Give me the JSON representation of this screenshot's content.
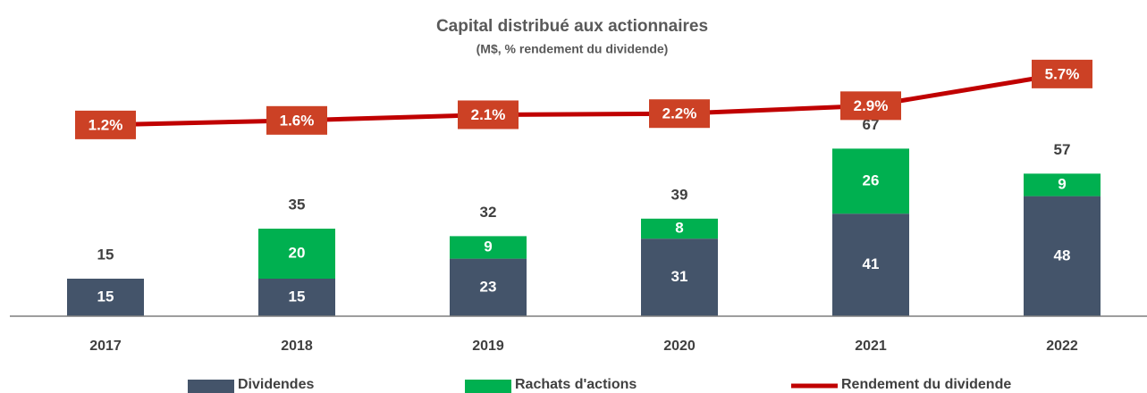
{
  "chart_data": {
    "type": "bar",
    "title": "Capital distribué aux actionnaires",
    "subtitle": "(M$, % rendement du dividende)",
    "categories": [
      "2017",
      "2018",
      "2019",
      "2020",
      "2021",
      "2022"
    ],
    "series": [
      {
        "name": "Dividendes",
        "color": "#44546a",
        "values": [
          15,
          15,
          23,
          31,
          41,
          48
        ]
      },
      {
        "name": "Rachats d'actions",
        "color": "#00b050",
        "values": [
          null,
          20,
          9,
          8,
          26,
          9
        ]
      },
      {
        "name": "Rendement du dividende",
        "color": "#c00000",
        "type": "line",
        "axis": "y2",
        "values": [
          1.2,
          1.6,
          2.1,
          2.2,
          2.9,
          5.7
        ],
        "value_labels": [
          "1.2%",
          "1.6%",
          "2.1%",
          "2.2%",
          "2.9%",
          "5.7%"
        ]
      }
    ],
    "totals": [
      15,
      35,
      32,
      39,
      67,
      57
    ],
    "ylim": [
      0,
      100
    ],
    "y2lim": [
      -15.7,
      6.4
    ],
    "stacked": true,
    "legend": "bottom"
  }
}
